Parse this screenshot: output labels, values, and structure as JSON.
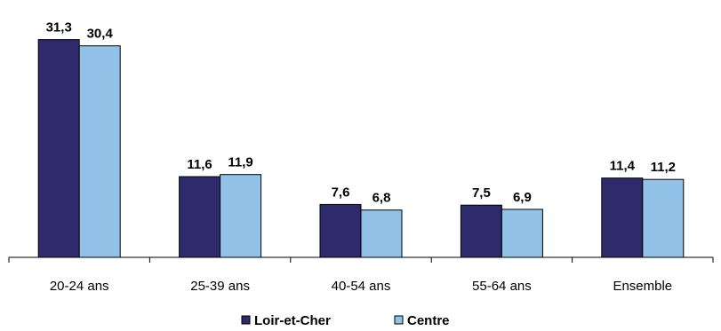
{
  "chart_data": {
    "type": "bar",
    "title": "",
    "xlabel": "",
    "ylabel": "",
    "categories": [
      "20-24 ans",
      "25-39 ans",
      "40-54 ans",
      "55-64 ans",
      "Ensemble"
    ],
    "series": [
      {
        "name": "Loir-et-Cher",
        "values": [
          31.3,
          11.6,
          7.6,
          7.5,
          11.4
        ],
        "display": [
          "31,3",
          "11,6",
          "7,6",
          "7,5",
          "11,4"
        ],
        "color": "#2E2A6B"
      },
      {
        "name": "Centre",
        "values": [
          30.4,
          11.9,
          6.8,
          6.9,
          11.2
        ],
        "display": [
          "30,4",
          "11,9",
          "6,8",
          "6,9",
          "11,2"
        ],
        "color": "#92C2E8"
      }
    ],
    "ylim": [
      0,
      32
    ],
    "grid": false,
    "legend_position": "bottom"
  }
}
